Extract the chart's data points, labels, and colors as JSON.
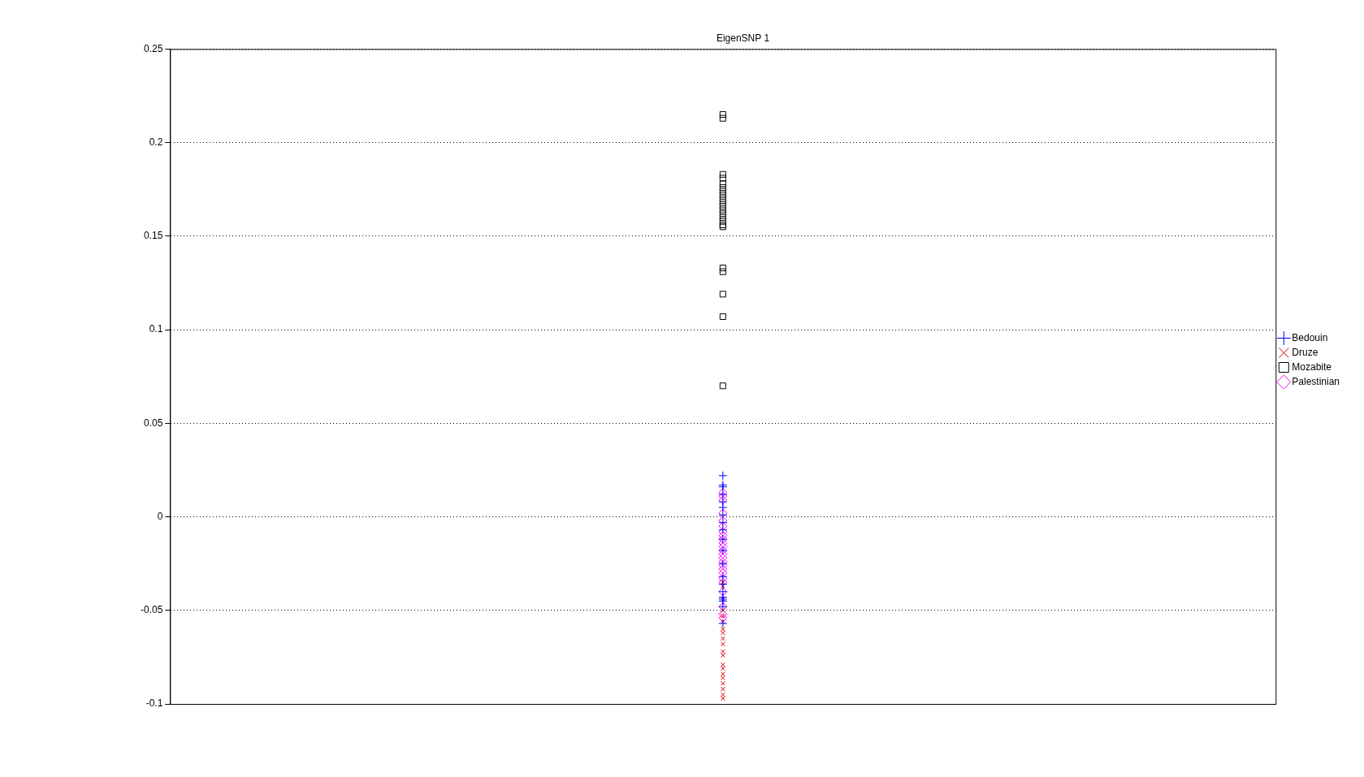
{
  "chart_data": {
    "type": "scatter",
    "title": "EigenSNP 1",
    "categories": [
      null
    ],
    "ylim": [
      -0.1,
      0.25
    ],
    "yticks": [
      -0.1,
      -0.05,
      0,
      0.05,
      0.1,
      0.15,
      0.2,
      0.25
    ],
    "grid": "y",
    "line_style": "dotted",
    "tick_labels": "y",
    "legend": "right",
    "series": [
      {
        "name": "Bedouin",
        "color": "#0000ff",
        "marker": "cross",
        "x": [
          null,
          null,
          null,
          null,
          null,
          null,
          null,
          null,
          null,
          null,
          null,
          null,
          null,
          null,
          null,
          null,
          null,
          null,
          null,
          null
        ],
        "values": [
          0.022,
          0.017,
          0.016,
          0.012,
          0.008,
          0.005,
          0.001,
          -0.003,
          -0.007,
          -0.012,
          -0.018,
          -0.025,
          -0.032,
          -0.036,
          -0.04,
          -0.043,
          -0.044,
          -0.045,
          -0.048,
          -0.057
        ]
      },
      {
        "name": "Druze",
        "color": "#dd0000",
        "marker": "x",
        "x": [
          null,
          null,
          null,
          null,
          null,
          null,
          null,
          null,
          null,
          null,
          null,
          null,
          null,
          null,
          null,
          null,
          null,
          null,
          null,
          null,
          null
        ],
        "values": [
          -0.035,
          -0.037,
          -0.044,
          -0.05,
          -0.053,
          -0.056,
          null,
          -0.06,
          -0.062,
          -0.065,
          -0.068,
          -0.072,
          -0.074,
          -0.079,
          -0.081,
          -0.084,
          -0.086,
          -0.089,
          -0.092,
          -0.095,
          -0.097
        ]
      },
      {
        "name": "Mozabite",
        "color": "#000000",
        "marker": "square",
        "x": [
          null,
          null,
          null,
          null,
          null,
          null,
          null,
          null,
          null,
          null,
          null,
          null,
          null,
          null,
          null,
          null,
          null,
          null,
          null,
          null,
          null,
          null
        ],
        "values": [
          0.215,
          0.213,
          0.183,
          0.181,
          0.178,
          0.176,
          0.174,
          0.172,
          0.17,
          0.168,
          0.166,
          0.164,
          0.162,
          0.16,
          0.158,
          0.156,
          0.155,
          0.133,
          0.131,
          0.119,
          0.107,
          0.07
        ]
      },
      {
        "name": "Palestinian",
        "color": "#ff00ff",
        "marker": "diamond",
        "x": [
          null,
          null,
          null,
          null,
          null,
          null,
          null,
          null,
          null,
          null,
          null,
          null,
          null,
          null,
          null,
          null,
          null,
          null,
          null,
          null,
          null,
          null,
          null,
          null
        ],
        "values": [
          0.013,
          0.011,
          0.009,
          0.002,
          -0.002,
          -0.005,
          -0.008,
          -0.01,
          -0.012,
          -0.014,
          -0.016,
          -0.018,
          -0.02,
          -0.022,
          -0.024,
          -0.026,
          -0.028,
          -0.03,
          -0.033,
          -0.035,
          -0.04,
          -0.048,
          -0.052,
          -0.054
        ]
      }
    ]
  }
}
